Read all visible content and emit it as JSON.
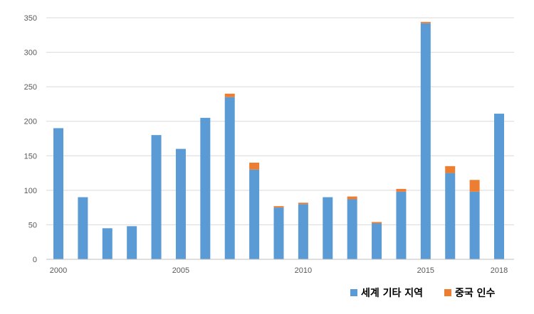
{
  "chart_data": {
    "type": "bar",
    "stacked": true,
    "x": [
      2000,
      2001,
      2002,
      2003,
      2004,
      2005,
      2006,
      2007,
      2008,
      2009,
      2010,
      2011,
      2012,
      2013,
      2014,
      2015,
      2016,
      2017,
      2018
    ],
    "x_tick_labels": [
      "2000",
      "2005",
      "2010",
      "2015",
      "2018"
    ],
    "y_tick_labels": [
      "0",
      "50",
      "100",
      "150",
      "200",
      "250",
      "300",
      "350"
    ],
    "ylim": [
      0,
      350
    ],
    "grid": true,
    "legend_position": "bottom-right",
    "series": [
      {
        "name": "세계 기타 지역",
        "color": "#5b9bd5",
        "values": [
          190,
          90,
          45,
          48,
          180,
          160,
          205,
          235,
          130,
          75,
          80,
          90,
          87,
          52,
          98,
          342,
          125,
          98,
          211
        ]
      },
      {
        "name": "중국 인수",
        "color": "#ed7d31",
        "values": [
          0,
          0,
          0,
          0,
          0,
          0,
          0,
          5,
          10,
          2,
          2,
          0,
          4,
          2,
          4,
          2,
          10,
          17,
          0
        ]
      }
    ]
  }
}
